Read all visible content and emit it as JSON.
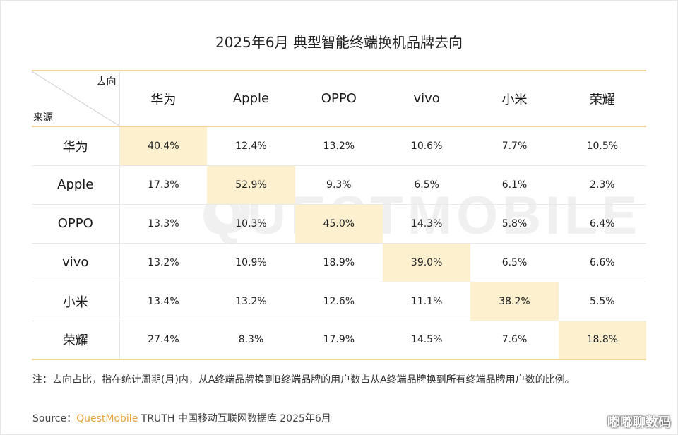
{
  "title": "2025年6月  典型智能终端换机品牌去向",
  "watermark": "QUESTMOBILE",
  "corner": {
    "to": "去向",
    "from": "来源"
  },
  "chart_data": {
    "type": "table",
    "title": "2025年6月  典型智能终端换机品牌去向",
    "columns": [
      "华为",
      "Apple",
      "OPPO",
      "vivo",
      "小米",
      "荣耀"
    ],
    "rows": [
      {
        "source": "华为",
        "values": [
          "40.4%",
          "12.4%",
          "13.2%",
          "10.6%",
          "7.7%",
          "10.5%"
        ]
      },
      {
        "source": "Apple",
        "values": [
          "17.3%",
          "52.9%",
          "9.3%",
          "6.5%",
          "6.1%",
          "2.3%"
        ]
      },
      {
        "source": "OPPO",
        "values": [
          "13.3%",
          "10.3%",
          "45.0%",
          "14.3%",
          "5.8%",
          "6.4%"
        ]
      },
      {
        "source": "vivo",
        "values": [
          "13.2%",
          "10.9%",
          "18.9%",
          "39.0%",
          "6.5%",
          "6.6%"
        ]
      },
      {
        "source": "小米",
        "values": [
          "13.4%",
          "13.2%",
          "12.6%",
          "11.1%",
          "38.2%",
          "5.5%"
        ]
      },
      {
        "source": "荣耀",
        "values": [
          "27.4%",
          "8.3%",
          "17.9%",
          "14.5%",
          "7.6%",
          "18.8%"
        ]
      }
    ],
    "highlight_color": "#fcf0cf"
  },
  "note": "注：去向占比，指在统计周期(月)内，从A终端品牌换到B终端品牌的用户数占从A终端品牌换到所有终端品牌用户数的比例。",
  "source": {
    "prefix": "Source：",
    "brand": "QuestMobile",
    "suffix": " TRUTH 中国移动互联网数据库 2025年6月"
  },
  "corner_tag": "嘟嘟聊数码",
  "colors": {
    "accent": "#f0d796",
    "brand": "#e8a33a"
  }
}
